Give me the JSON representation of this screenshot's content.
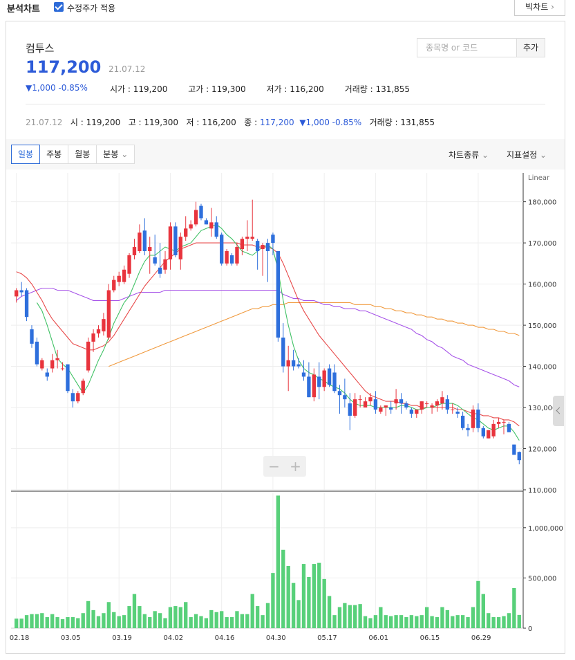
{
  "header": {
    "title": "분석차트",
    "adjusted_label": "수정주가 적용",
    "big_chart_label": "빅차트"
  },
  "stock": {
    "name": "컴투스",
    "price": "117,200",
    "date": "21.07.12",
    "change": "1,000 -0.85%",
    "stats": [
      "시가 : 119,200",
      "고가 : 119,300",
      "저가 : 116,200",
      "거래량 : 131,855"
    ]
  },
  "search": {
    "placeholder": "종목명 or 코드",
    "add_label": "추가"
  },
  "info_line": {
    "date": "21.07.12",
    "open": "시 : 119,200",
    "high": "고 : 119,300",
    "low": "저 : 116,200",
    "close_label": "종 :",
    "close_value": "117,200",
    "change": "1,000 -0.85%",
    "volume": "거래량 : 131,855"
  },
  "tabs": [
    "일봉",
    "주봉",
    "월봉",
    "분봉"
  ],
  "menus": {
    "chart_type": "차트종류",
    "indicators": "지표설정"
  },
  "colors": {
    "up": "#e8343d",
    "down": "#2e6fdc",
    "ma5": "#41c266",
    "ma20": "#e84a4a",
    "ma60": "#a653e8",
    "ma120": "#f0993c",
    "volume": "#58d07a"
  },
  "chart_data": {
    "type": "candlestick",
    "scale_label": "Linear",
    "y_ticks": [
      180000,
      170000,
      160000,
      150000,
      140000,
      130000,
      120000,
      110000
    ],
    "y_tick_labels": [
      "180,000",
      "170,000",
      "160,000",
      "150,000",
      "140,000",
      "130,000",
      "120,000",
      "110,000"
    ],
    "ylim": [
      110000,
      187000
    ],
    "volume_ticks": [
      1000000,
      500000,
      0
    ],
    "volume_tick_labels": [
      "1,000,000",
      "500,000",
      "0"
    ],
    "volume_ylim": [
      0,
      1350000
    ],
    "x_labels": [
      {
        "i": 0,
        "label": "02.18"
      },
      {
        "i": 10,
        "label": "03.05"
      },
      {
        "i": 20,
        "label": "03.19"
      },
      {
        "i": 30,
        "label": "04.02"
      },
      {
        "i": 40,
        "label": "04.16"
      },
      {
        "i": 50,
        "label": "04.30"
      },
      {
        "i": 60,
        "label": "05.17"
      },
      {
        "i": 70,
        "label": "06.01"
      },
      {
        "i": 80,
        "label": "06.15"
      },
      {
        "i": 90,
        "label": "06.29"
      }
    ],
    "candles": [
      [
        157000,
        159000,
        155500,
        158500,
        95000
      ],
      [
        158500,
        160500,
        157000,
        158000,
        95000
      ],
      [
        158500,
        159000,
        151000,
        152000,
        130000
      ],
      [
        149000,
        150000,
        144500,
        145500,
        140000
      ],
      [
        146000,
        147000,
        140000,
        140500,
        140000
      ],
      [
        139500,
        142000,
        139000,
        141500,
        150000
      ],
      [
        138500,
        139500,
        136500,
        137500,
        110000
      ],
      [
        139500,
        143000,
        138500,
        141500,
        140000
      ],
      [
        141500,
        144000,
        139500,
        142000,
        110000
      ],
      [
        139500,
        141000,
        139000,
        139500,
        90000
      ],
      [
        140500,
        140500,
        133500,
        134000,
        110000
      ],
      [
        133500,
        134500,
        130000,
        131500,
        110000
      ],
      [
        131500,
        134000,
        131000,
        133500,
        100000
      ],
      [
        133500,
        137000,
        133000,
        136500,
        150000
      ],
      [
        139000,
        147000,
        138500,
        146000,
        270000
      ],
      [
        146000,
        149000,
        143500,
        148000,
        180000
      ],
      [
        148000,
        150000,
        147000,
        149000,
        120000
      ],
      [
        148500,
        153000,
        147500,
        151500,
        150000
      ],
      [
        147000,
        160000,
        146500,
        158500,
        260000
      ],
      [
        158500,
        162000,
        158000,
        161000,
        160000
      ],
      [
        160500,
        163000,
        159500,
        162000,
        120000
      ],
      [
        160500,
        164500,
        160000,
        163500,
        130000
      ],
      [
        162500,
        167500,
        161500,
        167000,
        220000
      ],
      [
        167000,
        171000,
        166000,
        169000,
        340000
      ],
      [
        168000,
        174500,
        167500,
        172500,
        220000
      ],
      [
        173000,
        176000,
        167000,
        168000,
        140000
      ],
      [
        168000,
        171500,
        162500,
        169000,
        110000
      ],
      [
        166500,
        172000,
        164500,
        165000,
        170000
      ],
      [
        164000,
        170000,
        161500,
        162500,
        150000
      ],
      [
        163500,
        168000,
        162500,
        166000,
        100000
      ],
      [
        166000,
        175000,
        163500,
        174000,
        210000
      ],
      [
        174000,
        175000,
        166500,
        167000,
        220000
      ],
      [
        166000,
        172500,
        163500,
        171500,
        210000
      ],
      [
        171500,
        176500,
        170500,
        173500,
        260000
      ],
      [
        173500,
        175500,
        173000,
        174500,
        110000
      ],
      [
        174500,
        180000,
        174000,
        178000,
        140000
      ],
      [
        179000,
        179500,
        175500,
        176000,
        120000
      ],
      [
        175500,
        176000,
        174500,
        174500,
        100000
      ],
      [
        173500,
        178500,
        171500,
        175000,
        180000
      ],
      [
        175000,
        176500,
        171000,
        171500,
        160000
      ],
      [
        172000,
        172500,
        164500,
        165000,
        170000
      ],
      [
        165000,
        168500,
        164500,
        168000,
        110000
      ],
      [
        167000,
        167500,
        164500,
        165000,
        110000
      ],
      [
        165000,
        170000,
        164500,
        169000,
        170000
      ],
      [
        168500,
        171500,
        167000,
        171000,
        140000
      ],
      [
        171000,
        175500,
        168000,
        171500,
        140000
      ],
      [
        171000,
        180500,
        170500,
        171500,
        340000
      ],
      [
        170500,
        171000,
        163500,
        168000,
        220000
      ],
      [
        168500,
        170000,
        162000,
        169500,
        130000
      ],
      [
        170000,
        171000,
        160500,
        168000,
        250000
      ],
      [
        172000,
        172500,
        167000,
        170000,
        550000
      ],
      [
        168000,
        167500,
        146000,
        147000,
        1320000
      ],
      [
        147000,
        150500,
        138500,
        140000,
        780000
      ],
      [
        140000,
        145000,
        134000,
        141500,
        620000
      ],
      [
        141500,
        144000,
        139000,
        140000,
        450000
      ],
      [
        140500,
        142000,
        139500,
        140000,
        280000
      ],
      [
        138500,
        141500,
        136500,
        137500,
        640000
      ],
      [
        137500,
        141000,
        132500,
        132500,
        510000
      ],
      [
        132500,
        139500,
        131500,
        138000,
        640000
      ],
      [
        137500,
        141000,
        132000,
        135000,
        650000
      ],
      [
        135000,
        139500,
        134000,
        139000,
        490000
      ],
      [
        139500,
        140500,
        135000,
        135500,
        320000
      ],
      [
        138500,
        140500,
        133500,
        134000,
        130000
      ],
      [
        134000,
        135500,
        128500,
        133000,
        210000
      ],
      [
        133000,
        137000,
        130000,
        132000,
        250000
      ],
      [
        131000,
        133500,
        124500,
        128000,
        230000
      ],
      [
        128000,
        133500,
        127500,
        132000,
        230000
      ],
      [
        132000,
        133000,
        130000,
        132000,
        240000
      ],
      [
        130000,
        132500,
        130000,
        131500,
        120000
      ],
      [
        131500,
        133500,
        130500,
        132500,
        100000
      ],
      [
        132000,
        134000,
        128500,
        129500,
        130000
      ],
      [
        129000,
        130500,
        128500,
        130000,
        210000
      ],
      [
        130000,
        130500,
        128000,
        130500,
        130000
      ],
      [
        130000,
        131500,
        128500,
        129500,
        120000
      ],
      [
        131000,
        134500,
        129500,
        132000,
        130000
      ],
      [
        132000,
        133500,
        128500,
        131000,
        130000
      ],
      [
        131000,
        131500,
        129500,
        130000,
        110000
      ],
      [
        129500,
        130000,
        127500,
        128500,
        130000
      ],
      [
        128500,
        129500,
        127500,
        129500,
        120000
      ],
      [
        129500,
        131500,
        128500,
        131500,
        130000
      ],
      [
        131000,
        131500,
        130000,
        131000,
        210000
      ],
      [
        130000,
        131000,
        128500,
        130500,
        120000
      ],
      [
        130500,
        132000,
        129000,
        131500,
        110000
      ],
      [
        131000,
        134000,
        129500,
        132500,
        210000
      ],
      [
        132000,
        133000,
        128500,
        129500,
        180000
      ],
      [
        129500,
        131000,
        128500,
        129500,
        120000
      ],
      [
        129000,
        130000,
        127500,
        128500,
        130000
      ],
      [
        128000,
        129000,
        124500,
        125000,
        130000
      ],
      [
        125000,
        126000,
        123000,
        124500,
        110000
      ],
      [
        125000,
        130500,
        124000,
        129500,
        210000
      ],
      [
        129500,
        131000,
        124000,
        125000,
        470000
      ],
      [
        125000,
        125500,
        122500,
        123000,
        340000
      ],
      [
        122500,
        124500,
        122500,
        124500,
        150000
      ],
      [
        123000,
        127000,
        122500,
        126000,
        110000
      ],
      [
        126000,
        127500,
        125000,
        126500,
        110000
      ],
      [
        126500,
        127000,
        123500,
        126500,
        120000
      ],
      [
        126000,
        126500,
        124000,
        124000,
        150000
      ],
      [
        121000,
        121000,
        118500,
        118500,
        400000
      ],
      [
        119200,
        119300,
        116200,
        117200,
        131855
      ]
    ],
    "ma5": [
      null,
      null,
      null,
      null,
      155500,
      153500,
      150000,
      146000,
      142000,
      140500,
      139500,
      137500,
      135500,
      133500,
      135500,
      138500,
      141500,
      144000,
      147000,
      150500,
      153000,
      155500,
      157000,
      160000,
      163000,
      165500,
      167000,
      167000,
      168000,
      169000,
      168500,
      168000,
      169000,
      169500,
      170000,
      171500,
      173000,
      173500,
      174000,
      174500,
      173500,
      172000,
      171000,
      169500,
      168000,
      167500,
      167000,
      168000,
      169000,
      169500,
      168500,
      163500,
      156000,
      150000,
      145000,
      141500,
      139500,
      138500,
      138000,
      137000,
      136500,
      135500,
      135000,
      134500,
      133500,
      132000,
      131000,
      130500,
      130500,
      130500,
      130000,
      130000,
      130000,
      130000,
      130000,
      130500,
      130500,
      130000,
      129500,
      129500,
      130000,
      130000,
      130500,
      131000,
      131000,
      131000,
      130500,
      129500,
      128500,
      127500,
      127000,
      126000,
      125000,
      124500,
      125000,
      125500,
      125500,
      124000,
      122000
    ],
    "ma20": [
      163000,
      162500,
      161500,
      160000,
      158000,
      156000,
      153500,
      151500,
      150000,
      148500,
      147000,
      145500,
      145000,
      144500,
      144000,
      144000,
      144500,
      145000,
      146000,
      147500,
      149500,
      151500,
      153500,
      155500,
      157500,
      159500,
      161000,
      162500,
      164000,
      165500,
      166500,
      167500,
      168500,
      169000,
      169500,
      170000,
      170000,
      170000,
      170000,
      170000,
      170000,
      170000,
      170000,
      170000,
      169500,
      169500,
      169500,
      169000,
      169000,
      169000,
      168500,
      167500,
      165000,
      162000,
      159000,
      156000,
      153500,
      151500,
      149500,
      147500,
      146000,
      144500,
      143000,
      141500,
      140000,
      138500,
      137000,
      135500,
      134000,
      133000,
      132500,
      132000,
      131500,
      131500,
      131500,
      131000,
      131000,
      130500,
      130500,
      130000,
      130000,
      130000,
      130000,
      130000,
      130000,
      130000,
      129500,
      129500,
      129000,
      128500,
      128500,
      128000,
      128000,
      127500,
      127500,
      127000,
      127000,
      126500,
      125500
    ],
    "ma60": [
      156000,
      157000,
      157500,
      158000,
      158500,
      159000,
      159000,
      159000,
      158500,
      158500,
      158500,
      158000,
      157500,
      157000,
      156500,
      156000,
      156000,
      156000,
      156000,
      156000,
      156000,
      156500,
      157000,
      157500,
      158000,
      158000,
      158000,
      158000,
      158000,
      158500,
      158500,
      158500,
      158500,
      158500,
      158500,
      158500,
      158500,
      158500,
      158500,
      158500,
      158500,
      158500,
      158500,
      158500,
      158500,
      158500,
      158500,
      158500,
      158500,
      158500,
      158500,
      158500,
      157500,
      157000,
      156500,
      156500,
      156000,
      156000,
      156000,
      155500,
      155000,
      155000,
      154500,
      154500,
      154000,
      154000,
      154000,
      153500,
      153500,
      153000,
      152500,
      152000,
      151500,
      151000,
      150500,
      150000,
      149500,
      149000,
      148000,
      147500,
      146500,
      146000,
      145000,
      144500,
      143500,
      142500,
      142000,
      141500,
      140500,
      140000,
      139500,
      139000,
      138500,
      138000,
      137500,
      137000,
      136500,
      135500,
      135000
    ],
    "ma120": [
      null,
      null,
      null,
      null,
      null,
      null,
      null,
      null,
      null,
      null,
      null,
      null,
      null,
      null,
      null,
      null,
      null,
      null,
      140000,
      140500,
      141000,
      141500,
      142000,
      142500,
      143000,
      143500,
      144000,
      144500,
      145000,
      145500,
      146000,
      146500,
      147000,
      147500,
      148000,
      148500,
      149000,
      149500,
      150000,
      150500,
      151000,
      151500,
      152000,
      152500,
      153000,
      153500,
      154000,
      154000,
      154500,
      154500,
      155000,
      155000,
      155000,
      155500,
      155500,
      155500,
      155500,
      155500,
      155500,
      155500,
      155500,
      155500,
      155500,
      155500,
      155500,
      155500,
      155000,
      155000,
      155000,
      155000,
      154500,
      154500,
      154000,
      154000,
      153500,
      153500,
      153000,
      153000,
      152500,
      152500,
      152000,
      152000,
      151500,
      151500,
      151000,
      151000,
      150500,
      150500,
      150000,
      150000,
      149500,
      149500,
      149000,
      149000,
      148500,
      148500,
      148000,
      148000,
      147500
    ]
  }
}
